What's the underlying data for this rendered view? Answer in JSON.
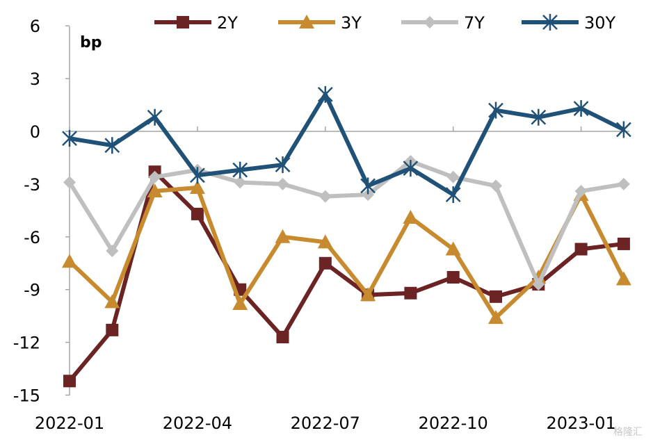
{
  "chart_data": {
    "type": "line",
    "unit_label": "bp",
    "x": [
      "2022-01",
      "2022-02",
      "2022-03",
      "2022-04",
      "2022-05",
      "2022-06",
      "2022-07",
      "2022-08",
      "2022-09",
      "2022-10",
      "2022-11",
      "2022-12",
      "2023-01",
      "2023-02"
    ],
    "x_tick_labels": [
      "2022-01",
      "2022-04",
      "2022-07",
      "2022-10",
      "2023-01"
    ],
    "y_ticks": [
      6,
      3,
      0,
      -3,
      -6,
      -9,
      -12,
      -15
    ],
    "ylim": [
      -15,
      6
    ],
    "legend_position": "top",
    "grid": false,
    "series": [
      {
        "name": "2Y",
        "color": "#6b2324",
        "marker": "square",
        "values": [
          -14.2,
          -11.3,
          -2.3,
          -4.7,
          -9.0,
          -11.7,
          -7.5,
          -9.3,
          -9.2,
          -8.3,
          -9.4,
          -8.7,
          -6.7,
          -6.4
        ]
      },
      {
        "name": "3Y",
        "color": "#c88a2e",
        "marker": "triangle",
        "values": [
          -7.4,
          -9.7,
          -3.4,
          -3.2,
          -9.8,
          -6.0,
          -6.3,
          -9.3,
          -4.9,
          -6.7,
          -10.6,
          -8.3,
          -3.6,
          -8.4
        ]
      },
      {
        "name": "7Y",
        "color": "#bfbfbf",
        "marker": "diamond",
        "values": [
          -2.9,
          -6.8,
          -2.6,
          -2.2,
          -2.9,
          -3.0,
          -3.7,
          -3.6,
          -1.7,
          -2.6,
          -3.1,
          -8.7,
          -3.4,
          -3.0
        ]
      },
      {
        "name": "30Y",
        "color": "#205177",
        "marker": "asterisk",
        "values": [
          -0.4,
          -0.8,
          0.8,
          -2.5,
          -2.2,
          -1.9,
          2.1,
          -3.1,
          -2.1,
          -3.6,
          1.2,
          0.8,
          1.3,
          0.1
        ]
      }
    ]
  },
  "watermark_text": "格隆汇"
}
